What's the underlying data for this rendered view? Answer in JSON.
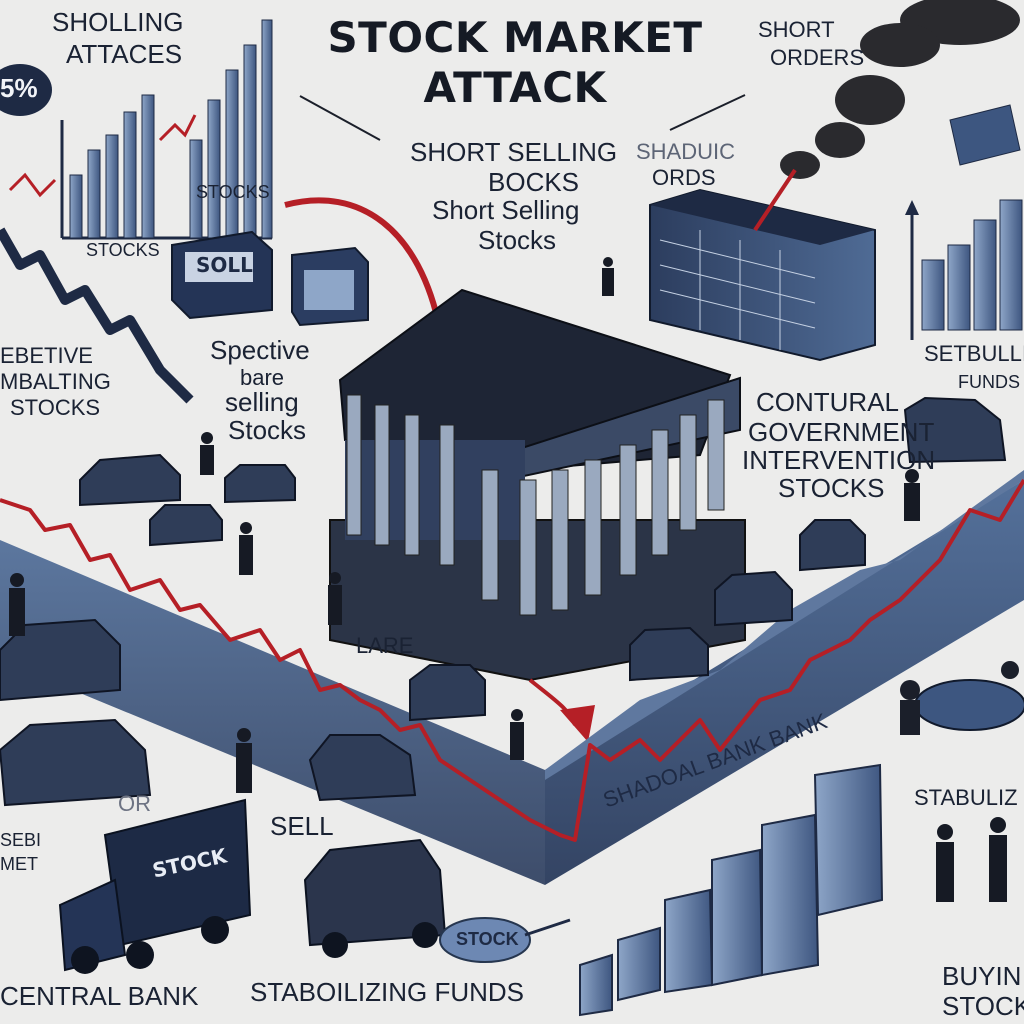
{
  "title": {
    "line1": "STOCK MARKET",
    "line2": "ATTACK"
  },
  "labels": {
    "top_left_1": "SHOLLING",
    "top_left_2": "ATTACES",
    "percent": "5%",
    "stocks_a": "STOCKS",
    "stocks_b": "STOCKS",
    "short_orders_1": "SHORT",
    "short_orders_2": "ORDERS",
    "center_1": "SHORT SELLING",
    "center_2": "BOCKS",
    "center_3": "Short Selling",
    "center_4": "Stocks",
    "shadow_orders_1": "SHADUIC",
    "shadow_orders_2": "ORDS",
    "left_mid_1": "EBETIVE",
    "left_mid_2": "MBALTING",
    "left_mid_3": "STOCKS",
    "spec_1": "Spective",
    "spec_2": "bare",
    "spec_3": "selling",
    "spec_4": "Stocks",
    "right_funds_1": "SETBULLI",
    "right_funds_2": "FUNDS",
    "govt_1": "CONTURAL",
    "govt_2": "GOVERNMENT",
    "govt_3": "INTERVENTION",
    "govt_4": "STOCKS",
    "lare": "LARE",
    "sell": "SELL",
    "shadoal_bank": "SHADOAL BANK BANK",
    "stabuliz": "STABULIZ",
    "or": "OR",
    "sell_left_1": "SEBI",
    "sell_left_2": "MET",
    "central_bank": "CENTRAL BANK",
    "stabilizing_funds": "STABOILIZING FUNDS",
    "buying_1": "BUYIN",
    "buying_2": "STOCKS"
  },
  "tags": {
    "sell_box": "SOLL",
    "truck": "STOCK",
    "bag": "STOCK"
  },
  "colors": {
    "background": "#ececeb",
    "navy": "#1e2a44",
    "slate_blue": "#3d5680",
    "crash_red": "#b51f26",
    "steel": "#5f789f"
  }
}
